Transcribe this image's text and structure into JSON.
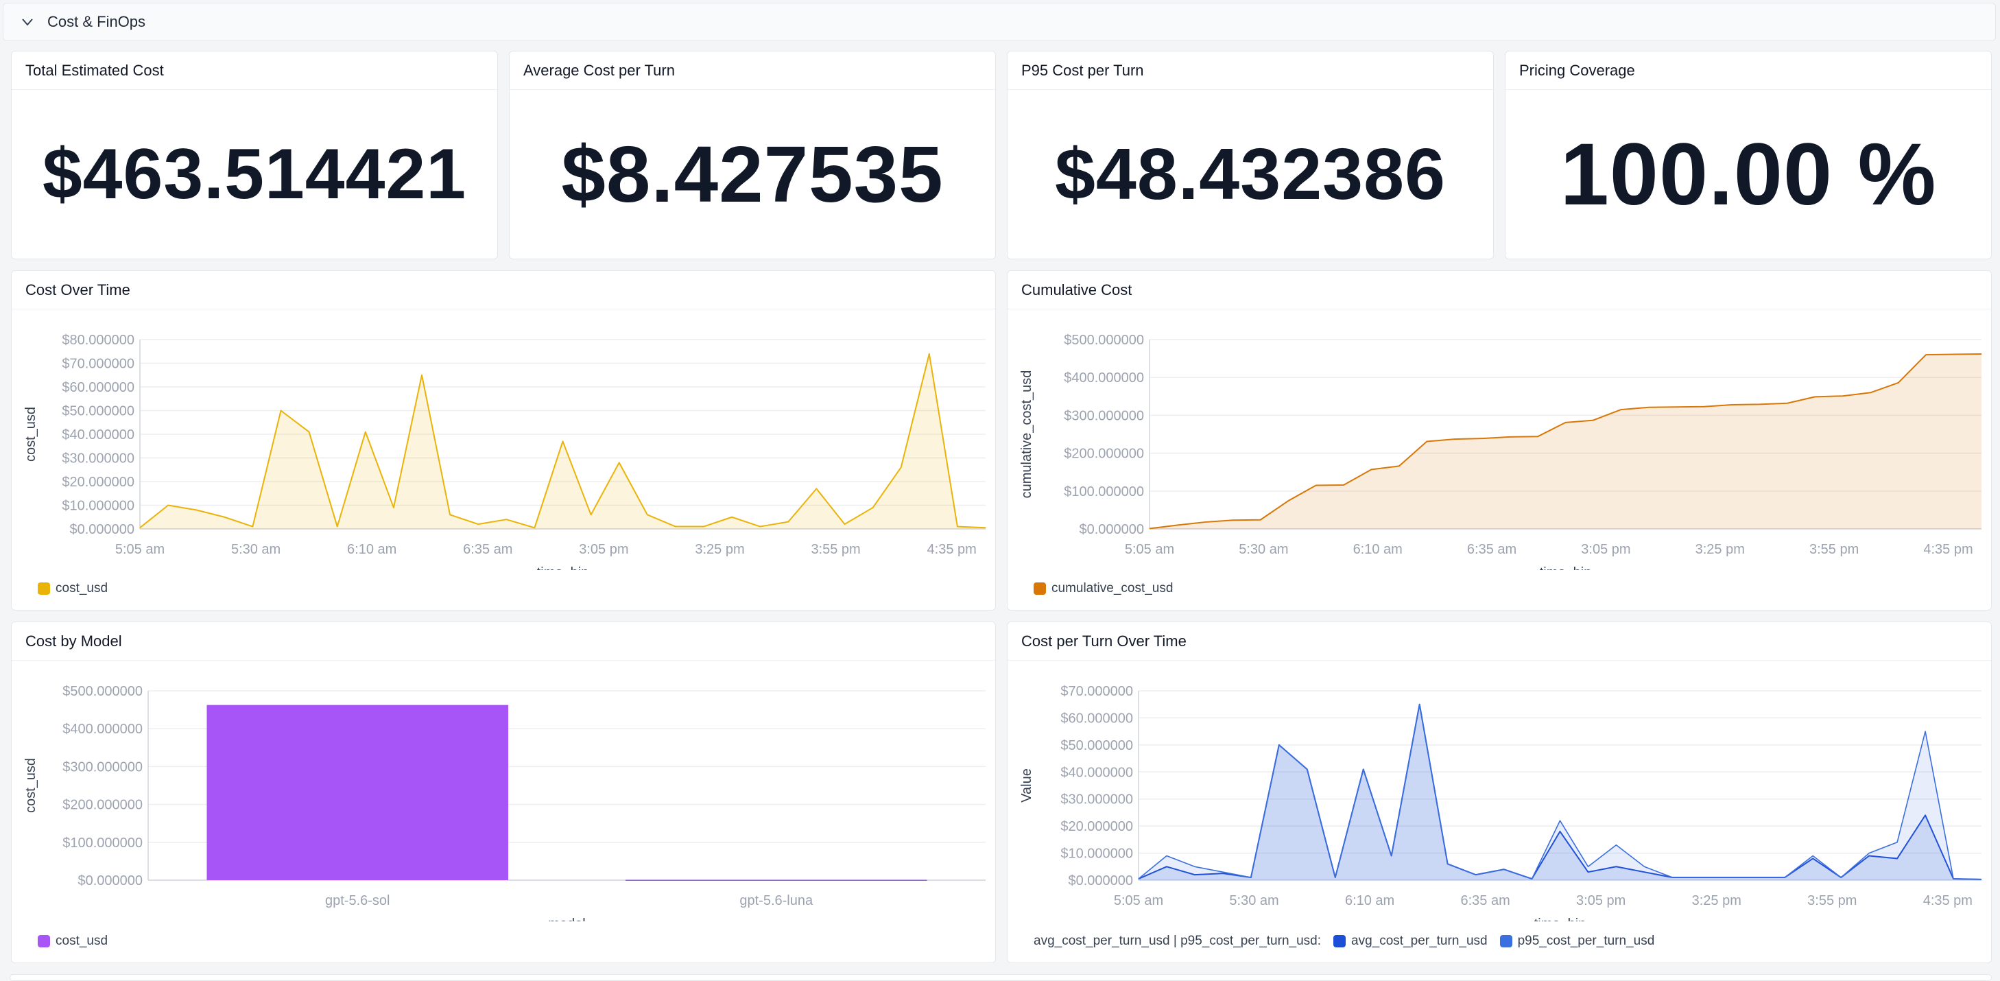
{
  "section": {
    "title": "Cost & FinOps"
  },
  "stats": [
    {
      "title": "Total Estimated Cost",
      "value": "$463.514421"
    },
    {
      "title": "Average Cost per Turn",
      "value": "$8.427535"
    },
    {
      "title": "P95 Cost per Turn",
      "value": "$48.432386"
    },
    {
      "title": "Pricing Coverage",
      "value": "100.00 %"
    }
  ],
  "panels": {
    "cost_over_time": {
      "title": "Cost Over Time"
    },
    "cumulative_cost": {
      "title": "Cumulative Cost"
    },
    "cost_by_model": {
      "title": "Cost by Model"
    },
    "cost_per_turn": {
      "title": "Cost per Turn Over Time"
    }
  },
  "colors": {
    "yellow": "#eab308",
    "orange": "#d97706",
    "purple": "#a855f7",
    "blue": "#1d4ed8",
    "blue_light": "#3b6fe0"
  },
  "chart_data": [
    {
      "id": "cost_over_time",
      "type": "area",
      "xlabel": "time_bin",
      "ylabel": "cost_usd",
      "ylim": [
        0,
        80
      ],
      "yticks": [
        "$0.000000",
        "$10.000000",
        "$20.000000",
        "$30.000000",
        "$40.000000",
        "$50.000000",
        "$60.000000",
        "$70.000000",
        "$80.000000"
      ],
      "xticks": [
        "5:05 am",
        "5:30 am",
        "6:10 am",
        "6:35 am",
        "3:05 pm",
        "3:25 pm",
        "3:55 pm",
        "4:35 pm"
      ],
      "xtick_index": [
        0,
        5,
        10,
        15,
        20,
        25,
        30,
        35
      ],
      "series": [
        {
          "name": "cost_usd",
          "color": "#eab308",
          "values": [
            0.5,
            10,
            8,
            5,
            1,
            50,
            41,
            1,
            41,
            9,
            65,
            6,
            2,
            4,
            0.5,
            37,
            6,
            28,
            6,
            1,
            1,
            5,
            1,
            3,
            17,
            2,
            9,
            26,
            74,
            1,
            0.5
          ]
        }
      ],
      "legend": [
        "cost_usd"
      ]
    },
    {
      "id": "cumulative_cost",
      "type": "area",
      "xlabel": "time_bin",
      "ylabel": "cumulative_cost_usd",
      "ylim": [
        0,
        500
      ],
      "yticks": [
        "$0.000000",
        "$100.000000",
        "$200.000000",
        "$300.000000",
        "$400.000000",
        "$500.000000"
      ],
      "xticks": [
        "5:05 am",
        "5:30 am",
        "6:10 am",
        "6:35 am",
        "3:05 pm",
        "3:25 pm",
        "3:55 pm",
        "4:35 pm"
      ],
      "xtick_index": [
        0,
        5,
        10,
        15,
        20,
        25,
        30,
        35
      ],
      "series": [
        {
          "name": "cumulative_cost_usd",
          "color": "#d97706",
          "values": [
            1,
            10,
            18,
            23,
            24,
            74,
            115,
            116,
            157,
            166,
            231,
            237,
            239,
            243,
            244,
            281,
            287,
            315,
            321,
            322,
            323,
            328,
            329,
            332,
            349,
            351,
            360,
            386,
            460,
            461,
            462
          ]
        }
      ],
      "legend": [
        "cumulative_cost_usd"
      ]
    },
    {
      "id": "cost_by_model",
      "type": "bar",
      "xlabel": "model",
      "ylabel": "cost_usd",
      "ylim": [
        0,
        500
      ],
      "yticks": [
        "$0.000000",
        "$100.000000",
        "$200.000000",
        "$300.000000",
        "$400.000000",
        "$500.000000"
      ],
      "categories": [
        "gpt-5.6-sol",
        "gpt-5.6-luna"
      ],
      "series": [
        {
          "name": "cost_usd",
          "color": "#a855f7",
          "values": [
            462.6,
            0.9
          ]
        }
      ],
      "legend": [
        "cost_usd"
      ]
    },
    {
      "id": "cost_per_turn",
      "type": "area",
      "xlabel": "time_bin",
      "ylabel": "Value",
      "ylim": [
        0,
        70
      ],
      "yticks": [
        "$0.000000",
        "$10.000000",
        "$20.000000",
        "$30.000000",
        "$40.000000",
        "$50.000000",
        "$60.000000",
        "$70.000000"
      ],
      "xticks": [
        "5:05 am",
        "5:30 am",
        "6:10 am",
        "6:35 am",
        "3:05 pm",
        "3:25 pm",
        "3:55 pm",
        "4:35 pm"
      ],
      "xtick_index": [
        0,
        5,
        10,
        15,
        20,
        25,
        30,
        35
      ],
      "series": [
        {
          "name": "avg_cost_per_turn_usd",
          "color": "#1d4ed8",
          "values": [
            0.5,
            5,
            2,
            2.5,
            1,
            50,
            41,
            1,
            41,
            9,
            65,
            6,
            2,
            4,
            0.5,
            18,
            3,
            5,
            3,
            1,
            1,
            1,
            1,
            1,
            8,
            1,
            9,
            8,
            24,
            0.5,
            0.3
          ]
        },
        {
          "name": "p95_cost_per_turn_usd",
          "color": "#3b6fe0",
          "values": [
            0.5,
            9,
            5,
            3,
            1,
            50,
            41,
            1,
            41,
            9,
            65,
            6,
            2,
            4,
            0.5,
            22,
            5,
            13,
            5,
            1,
            1,
            1,
            1,
            1,
            9,
            1,
            10,
            14,
            55,
            0.5,
            0.3
          ]
        }
      ],
      "legend_prefix": "avg_cost_per_turn_usd | p95_cost_per_turn_usd:",
      "legend": [
        "avg_cost_per_turn_usd",
        "p95_cost_per_turn_usd"
      ]
    }
  ]
}
